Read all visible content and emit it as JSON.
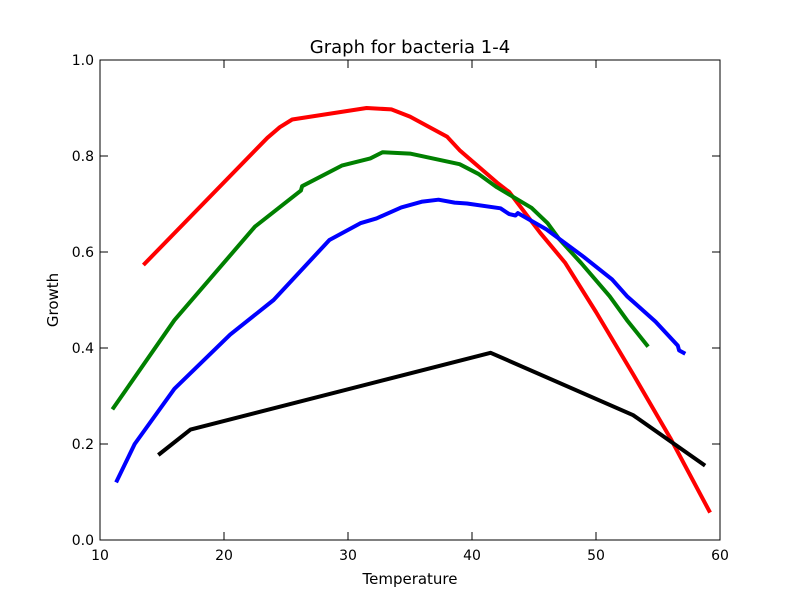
{
  "chart_data": {
    "type": "line",
    "title": "Graph for bacteria 1-4",
    "xlabel": "Temperature",
    "ylabel": "Growth",
    "xlim": [
      10,
      60
    ],
    "ylim": [
      0,
      1.0
    ],
    "xticks": [
      10,
      20,
      30,
      40,
      50,
      60
    ],
    "xtick_labels": [
      "10",
      "20",
      "30",
      "40",
      "50",
      "60"
    ],
    "yticks": [
      0,
      0.2,
      0.4,
      0.6,
      0.8,
      1.0
    ],
    "ytick_labels": [
      "0.0",
      "0.2",
      "0.4",
      "0.6",
      "0.8",
      "1.0"
    ],
    "grid": false,
    "legend": "none",
    "series": [
      {
        "color": "#ff0000",
        "points": [
          [
            13.5,
            0.573
          ],
          [
            23.5,
            0.838
          ],
          [
            24.5,
            0.86
          ],
          [
            25.5,
            0.876
          ],
          [
            31.5,
            0.9
          ],
          [
            33.5,
            0.897
          ],
          [
            35,
            0.882
          ],
          [
            38,
            0.84
          ],
          [
            39,
            0.812
          ],
          [
            42,
            0.745
          ],
          [
            43,
            0.725
          ],
          [
            45.5,
            0.64
          ],
          [
            47.5,
            0.578
          ],
          [
            50,
            0.475
          ],
          [
            53,
            0.345
          ],
          [
            56,
            0.212
          ],
          [
            59.2,
            0.057
          ]
        ]
      },
      {
        "color": "#008000",
        "points": [
          [
            11,
            0.272
          ],
          [
            16,
            0.458
          ],
          [
            22.5,
            0.653
          ],
          [
            26.2,
            0.728
          ],
          [
            26.3,
            0.737
          ],
          [
            29.5,
            0.78
          ],
          [
            31.8,
            0.795
          ],
          [
            32.8,
            0.808
          ],
          [
            35,
            0.805
          ],
          [
            39,
            0.783
          ],
          [
            40.5,
            0.763
          ],
          [
            42,
            0.735
          ],
          [
            44.8,
            0.692
          ],
          [
            46.1,
            0.66
          ],
          [
            47,
            0.628
          ],
          [
            48.8,
            0.577
          ],
          [
            51.1,
            0.508
          ],
          [
            52.5,
            0.458
          ],
          [
            54.2,
            0.403
          ]
        ]
      },
      {
        "color": "#0000ff",
        "points": [
          [
            11.3,
            0.12
          ],
          [
            12.8,
            0.2
          ],
          [
            16,
            0.315
          ],
          [
            20.5,
            0.428
          ],
          [
            24,
            0.5
          ],
          [
            28.5,
            0.625
          ],
          [
            31,
            0.66
          ],
          [
            32.3,
            0.67
          ],
          [
            34.3,
            0.693
          ],
          [
            36,
            0.705
          ],
          [
            37.3,
            0.709
          ],
          [
            38.6,
            0.703
          ],
          [
            39.6,
            0.701
          ],
          [
            42.3,
            0.691
          ],
          [
            43,
            0.679
          ],
          [
            43.5,
            0.676
          ],
          [
            43.7,
            0.681
          ],
          [
            46,
            0.647
          ],
          [
            49,
            0.59
          ],
          [
            51.3,
            0.543
          ],
          [
            52.5,
            0.508
          ],
          [
            54.8,
            0.455
          ],
          [
            56.6,
            0.405
          ],
          [
            56.7,
            0.395
          ],
          [
            57.2,
            0.388
          ]
        ]
      },
      {
        "color": "#000000",
        "points": [
          [
            14.7,
            0.177
          ],
          [
            17.3,
            0.23
          ],
          [
            41.5,
            0.39
          ],
          [
            53,
            0.26
          ],
          [
            58.8,
            0.155
          ]
        ]
      }
    ]
  }
}
